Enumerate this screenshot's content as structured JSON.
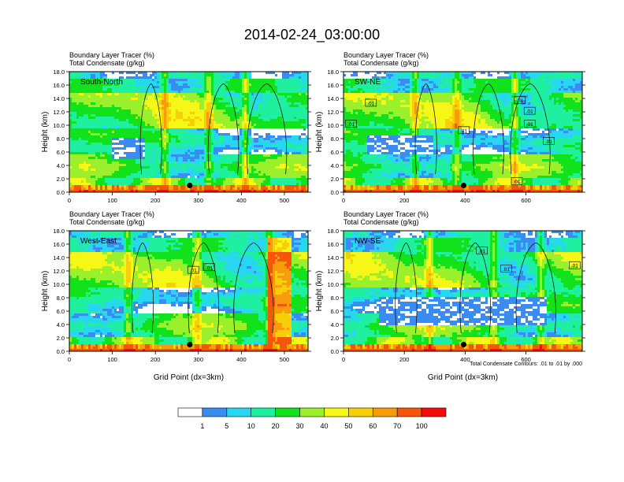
{
  "figure": {
    "title": "2014-02-24_03:00:00",
    "note": "Total Condensate Contours: .01 to .01 by .000"
  },
  "chart_data": [
    {
      "type": "heatmap",
      "panel": "South-North",
      "title_line1": "Boundary Layer Tracer   (%)",
      "title_line2": "Total Condensate   (g/kg)",
      "ylabel": "Height (km)",
      "xlabel": "",
      "xlim": [
        0,
        555
      ],
      "ylim": [
        0,
        18
      ],
      "xticks": [
        0,
        100,
        200,
        300,
        400,
        500
      ],
      "yticks": [
        0,
        2,
        4,
        6,
        8,
        10,
        12,
        14,
        16,
        18
      ],
      "ytick_labels": [
        "0.0",
        "2.0",
        "4.0",
        "6.0",
        "8.0",
        "10.0",
        "12.0",
        "14.0",
        "16.0",
        "18.0"
      ],
      "marker": {
        "x": 280,
        "y": 1.0
      },
      "contour_labels": []
    },
    {
      "type": "heatmap",
      "panel": "SW-NE",
      "title_line1": "Boundary Layer Tracer   (%)",
      "title_line2": "Total Condensate   (g/kg)",
      "ylabel": "Height (km)",
      "xlabel": "",
      "xlim": [
        0,
        785
      ],
      "ylim": [
        0,
        18
      ],
      "xticks": [
        0,
        200,
        400,
        600
      ],
      "yticks": [
        0,
        2,
        4,
        6,
        8,
        10,
        12,
        14,
        16,
        18
      ],
      "ytick_labels": [
        "0.0",
        "2.0",
        "4.0",
        "6.0",
        "8.0",
        "10.0",
        "12.0",
        "14.0",
        "16.0",
        "18.0"
      ],
      "marker": {
        "x": 395,
        "y": 1.0
      },
      "contour_labels": [
        {
          "text": ".01",
          "x": 25,
          "y": 10.2
        },
        {
          "text": ".01",
          "x": 90,
          "y": 13.3
        },
        {
          "text": ".01",
          "x": 395,
          "y": 9.2
        },
        {
          "text": ".01",
          "x": 580,
          "y": 13.7
        },
        {
          "text": ".01",
          "x": 612,
          "y": 12.1
        },
        {
          "text": ".01",
          "x": 612,
          "y": 10.2
        },
        {
          "text": ".01",
          "x": 675,
          "y": 7.6
        },
        {
          "text": ".01",
          "x": 570,
          "y": 1.6
        }
      ]
    },
    {
      "type": "heatmap",
      "panel": "West-East",
      "title_line1": "Boundary Layer Tracer   (%)",
      "title_line2": "Total Condensate   (g/kg)",
      "ylabel": "Height (km)",
      "xlabel": "Grid Point (dx=3km)",
      "xlim": [
        0,
        555
      ],
      "ylim": [
        0,
        18
      ],
      "xticks": [
        0,
        100,
        200,
        300,
        400,
        500
      ],
      "yticks": [
        0,
        2,
        4,
        6,
        8,
        10,
        12,
        14,
        16,
        18
      ],
      "ytick_labels": [
        "0.0",
        "2.0",
        "4.0",
        "6.0",
        "8.0",
        "10.0",
        "12.0",
        "14.0",
        "16.0",
        "18.0"
      ],
      "marker": {
        "x": 280,
        "y": 1.0
      },
      "contour_labels": [
        {
          "text": ".01",
          "x": 288,
          "y": 12.1
        },
        {
          "text": ".01",
          "x": 325,
          "y": 12.5
        }
      ]
    },
    {
      "type": "heatmap",
      "panel": "NW-SE",
      "title_line1": "Boundary Layer Tracer   (%)",
      "title_line2": "Total Condensate   (g/kg)",
      "ylabel": "Height (km)",
      "xlabel": "Grid Point (dx=3km)",
      "xlim": [
        0,
        785
      ],
      "ylim": [
        0,
        18
      ],
      "xticks": [
        0,
        200,
        400,
        600
      ],
      "yticks": [
        0,
        2,
        4,
        6,
        8,
        10,
        12,
        14,
        16,
        18
      ],
      "ytick_labels": [
        "0.0",
        "2.0",
        "4.0",
        "6.0",
        "8.0",
        "10.0",
        "12.0",
        "14.0",
        "16.0",
        "18.0"
      ],
      "marker": {
        "x": 395,
        "y": 1.0
      },
      "contour_labels": [
        {
          "text": ".01",
          "x": 455,
          "y": 15.0
        },
        {
          "text": ".01",
          "x": 535,
          "y": 12.3
        },
        {
          "text": ".01",
          "x": 760,
          "y": 12.8
        }
      ]
    }
  ],
  "colorbar": {
    "levels": [
      "1",
      "5",
      "10",
      "20",
      "30",
      "40",
      "50",
      "60",
      "70",
      "100"
    ],
    "colors": [
      "#ffffff",
      "#3a8cf2",
      "#27d7f1",
      "#1ef0a0",
      "#11e21b",
      "#9bf02c",
      "#f6f617",
      "#f7cf08",
      "#f99c0b",
      "#f6560c",
      "#f40c0c"
    ]
  }
}
